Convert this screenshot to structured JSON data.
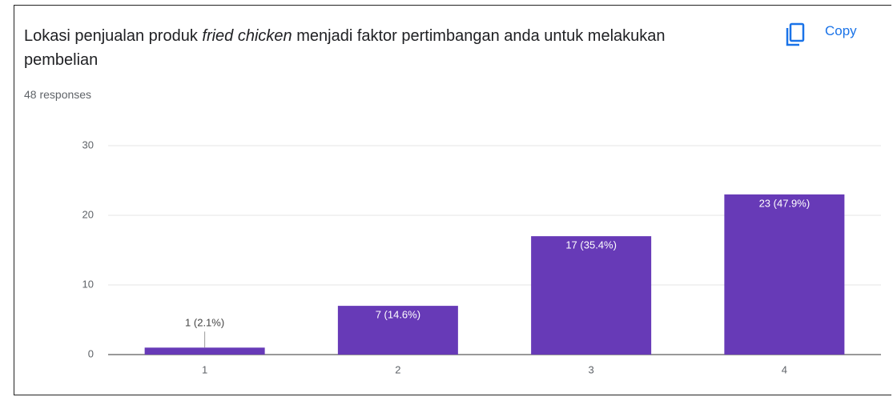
{
  "header": {
    "copy": "Copy"
  },
  "chart_data": {
    "type": "bar",
    "title": [
      "Lokasi penjualan produk ",
      "fried chicken",
      " menjadi faktor pertimbangan anda untuk melakukan pembelian"
    ],
    "subtitle": "48 responses",
    "categories": [
      "1",
      "2",
      "3",
      "4"
    ],
    "values": [
      1,
      7,
      17,
      23
    ],
    "value_labels": [
      "1 (2.1%)",
      "7 (14.6%)",
      "17 (35.4%)",
      "23 (47.9%)"
    ],
    "color": "#673ab7",
    "ylim": [
      0,
      30
    ],
    "yticks": [
      0,
      10,
      20,
      30
    ],
    "grid": true
  }
}
